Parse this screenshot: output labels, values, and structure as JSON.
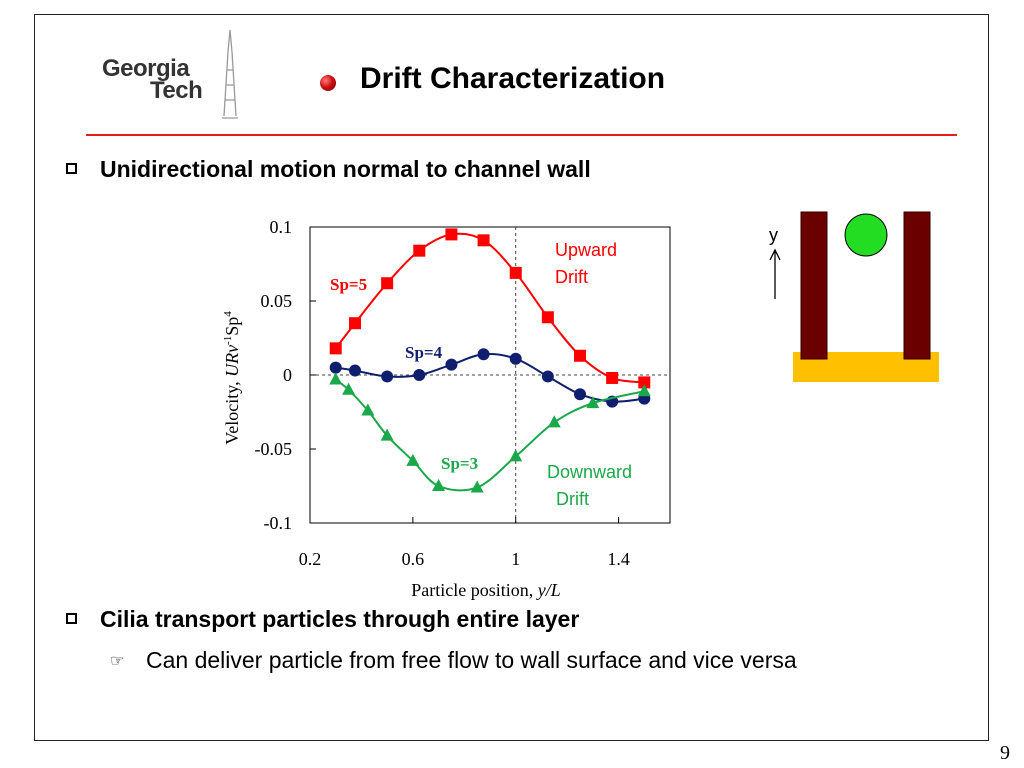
{
  "logo": {
    "line1": "Georgia",
    "line2": "Tech"
  },
  "title": "Drift Characterization",
  "bullets": {
    "first": "Unidirectional motion normal to channel wall",
    "second": "Cilia transport particles through entire layer",
    "sub": "Can deliver particle from free flow to wall surface and vice versa"
  },
  "page_number": "9",
  "diagram": {
    "axis_label": "y"
  },
  "colors": {
    "accent": "#e02020",
    "sp5": "#ff0000",
    "sp4": "#0f1f6e",
    "sp3": "#1aa84a",
    "wall": "#6b0000",
    "floor": "#ffc000",
    "particle": "#22dd22"
  },
  "chart_data": {
    "type": "line",
    "xlabel_prefix": "Particle position, ",
    "xlabel_var": "y/L",
    "ylabel_main": "Velocity, ",
    "ylabel_var": "URv",
    "ylabel_sup1": "-1",
    "ylabel_sp": "Sp",
    "ylabel_sup2": "4",
    "xlim": [
      0.2,
      1.6
    ],
    "ylim": [
      -0.1,
      0.1
    ],
    "xticks": [
      "0.2",
      "0.6",
      "1",
      "1.4"
    ],
    "xtick_values": [
      0.2,
      0.6,
      1.0,
      1.4
    ],
    "yticks": [
      "0.1",
      "0.05",
      "0",
      "-0.05",
      "-0.1"
    ],
    "ytick_values": [
      0.1,
      0.05,
      0,
      -0.05,
      -0.1
    ],
    "grid": false,
    "series": [
      {
        "name": "Sp=5",
        "marker": "square",
        "x": [
          0.3,
          0.375,
          0.5,
          0.625,
          0.75,
          0.875,
          1.0,
          1.125,
          1.25,
          1.375,
          1.5
        ],
        "y": [
          0.018,
          0.035,
          0.062,
          0.084,
          0.095,
          0.091,
          0.069,
          0.039,
          0.013,
          -0.002,
          -0.005
        ]
      },
      {
        "name": "Sp=4",
        "marker": "circle",
        "x": [
          0.3,
          0.375,
          0.5,
          0.625,
          0.75,
          0.875,
          1.0,
          1.125,
          1.25,
          1.375,
          1.5
        ],
        "y": [
          0.005,
          0.003,
          -0.001,
          0.0,
          0.007,
          0.014,
          0.011,
          -0.001,
          -0.013,
          -0.018,
          -0.016
        ]
      },
      {
        "name": "Sp=3",
        "marker": "triangle",
        "x": [
          0.3,
          0.35,
          0.425,
          0.5,
          0.6,
          0.7,
          0.85,
          1.0,
          1.15,
          1.3,
          1.5
        ],
        "y": [
          -0.003,
          -0.01,
          -0.024,
          -0.041,
          -0.058,
          -0.075,
          -0.076,
          -0.055,
          -0.032,
          -0.019,
          -0.011
        ]
      }
    ],
    "annotations": {
      "upward_line1": "Upward",
      "upward_line2": "Drift",
      "downward_line1": "Downward",
      "downward_line2": "Drift"
    }
  }
}
